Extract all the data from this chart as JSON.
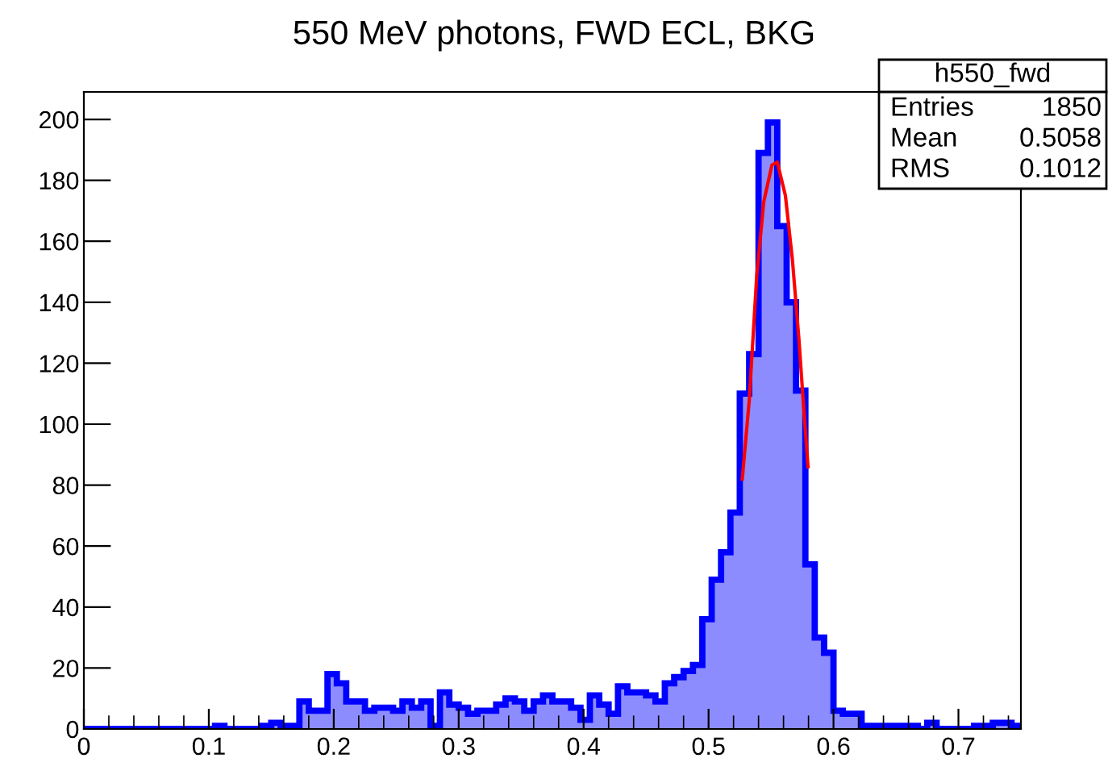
{
  "chart_data": {
    "type": "histogram",
    "title": "550 MeV photons, FWD ECL, BKG",
    "bins": [
      0,
      0.0075,
      0.015,
      0.0225,
      0.03,
      0.0375,
      0.045,
      0.0525,
      0.06,
      0.0675,
      0.075,
      0.0825,
      0.09,
      0.0975,
      0.105,
      0.1125,
      0.12,
      0.1275,
      0.135,
      0.1425,
      0.15,
      0.1575,
      0.165,
      0.1725,
      0.18,
      0.1875,
      0.195,
      0.2025,
      0.21,
      0.2175,
      0.225,
      0.2325,
      0.24,
      0.2475,
      0.255,
      0.2625,
      0.27,
      0.2775,
      0.285,
      0.2925,
      0.3,
      0.3075,
      0.315,
      0.3225,
      0.33,
      0.3375,
      0.345,
      0.3525,
      0.36,
      0.3675,
      0.375,
      0.3825,
      0.39,
      0.3975,
      0.405,
      0.4125,
      0.42,
      0.4275,
      0.435,
      0.4425,
      0.45,
      0.4575,
      0.465,
      0.4725,
      0.48,
      0.4875,
      0.495,
      0.5025,
      0.51,
      0.5175,
      0.525,
      0.5325,
      0.54,
      0.5475,
      0.555,
      0.5625,
      0.57,
      0.5775,
      0.585,
      0.5925,
      0.6,
      0.6075,
      0.615,
      0.6225,
      0.63,
      0.6375,
      0.645,
      0.6525,
      0.66,
      0.6675,
      0.675,
      0.6825,
      0.69,
      0.6975,
      0.705,
      0.7125,
      0.72,
      0.7275,
      0.735,
      0.7425,
      0.75
    ],
    "series": [
      {
        "type": "histogram",
        "color": "#0000ff",
        "values": [
          0,
          0,
          0,
          0,
          0,
          0,
          0,
          0,
          0,
          0,
          0,
          0,
          0,
          0,
          1,
          0,
          0,
          0,
          0,
          1,
          2,
          1,
          1,
          9,
          6,
          6,
          18,
          15,
          9,
          9,
          6,
          7,
          7,
          6,
          9,
          7,
          9,
          1,
          12,
          8,
          7,
          5,
          6,
          6,
          8,
          10,
          9,
          6,
          9,
          11,
          9,
          9,
          7,
          3,
          11,
          8,
          5,
          14,
          12,
          12,
          11,
          9,
          15,
          17,
          19,
          21,
          36,
          49,
          58,
          71,
          110,
          123,
          189,
          199,
          165,
          140,
          111,
          54,
          30,
          25,
          6,
          5,
          5,
          1,
          1,
          1,
          1,
          1,
          1,
          0,
          2,
          0,
          0,
          0,
          0,
          1,
          1,
          2,
          2,
          1
        ]
      },
      {
        "type": "line",
        "color": "#ff0000",
        "x": [
          0.527,
          0.5326,
          0.5386,
          0.5442,
          0.5507,
          0.555,
          0.5615,
          0.5671,
          0.5723,
          0.5757,
          0.5796
        ],
        "values": [
          82,
          108,
          149,
          173,
          185,
          186,
          175,
          154,
          128,
          108,
          86
        ]
      }
    ],
    "xlim": [
      0,
      0.75
    ],
    "ylim": [
      0,
      209
    ],
    "xticks": [
      0,
      0.1,
      0.2,
      0.3,
      0.4,
      0.5,
      0.6,
      0.7
    ],
    "yticks": [
      0,
      20,
      40,
      60,
      80,
      100,
      120,
      140,
      160,
      180,
      200
    ],
    "annotations": [
      "h550_fwd",
      "Entries",
      "1850",
      "Mean",
      "0.5058",
      "RMS",
      "0.1012"
    ],
    "grid": false
  }
}
